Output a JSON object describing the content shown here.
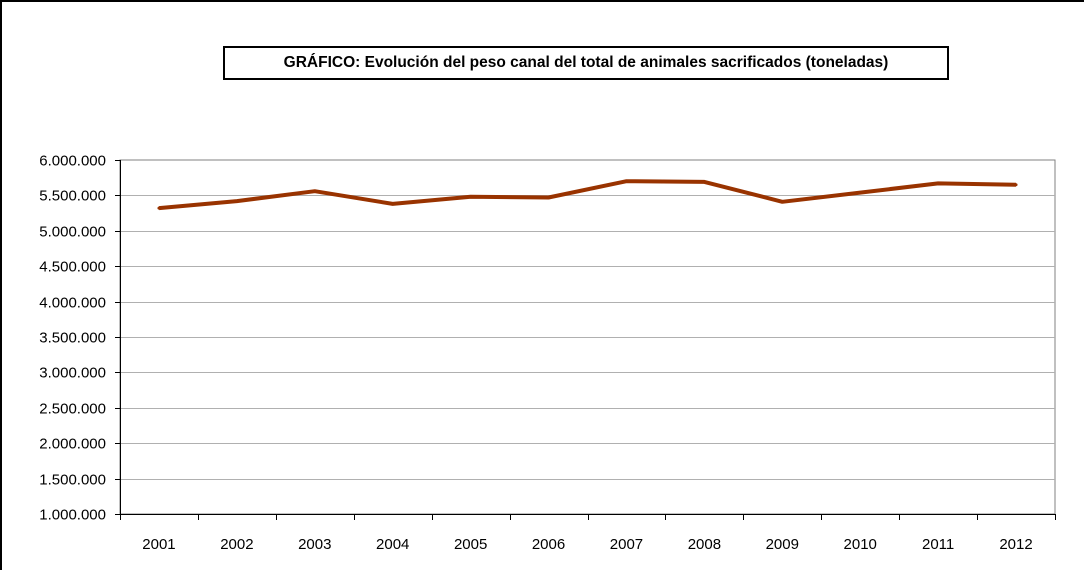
{
  "chart_data": {
    "type": "line",
    "title": "GRÁFICO: Evolución del peso canal del total de animales sacrificados (toneladas)",
    "categories": [
      "2001",
      "2002",
      "2003",
      "2004",
      "2005",
      "2006",
      "2007",
      "2008",
      "2009",
      "2010",
      "2011",
      "2012"
    ],
    "series": [
      {
        "values": [
          5320000,
          5420000,
          5560000,
          5380000,
          5480000,
          5470000,
          5700000,
          5690000,
          5410000,
          5540000,
          5670000,
          5650000
        ],
        "color": "#993300"
      }
    ],
    "ylim": [
      1000000,
      6000000
    ],
    "y_ticks": [
      "1.000.000",
      "1.500.000",
      "2.000.000",
      "2.500.000",
      "3.000.000",
      "3.500.000",
      "4.000.000",
      "4.500.000",
      "5.000.000",
      "5.500.000",
      "6.000.000"
    ],
    "grid": true,
    "legend": "none"
  }
}
